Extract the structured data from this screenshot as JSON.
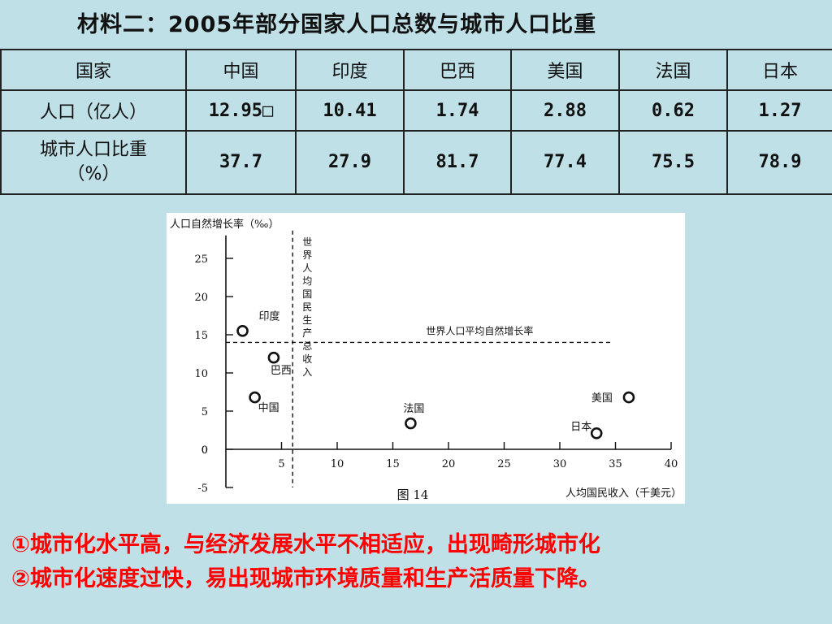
{
  "title": "材料二：2005年部分国家人口总数与城市人口比重",
  "table": {
    "headers": [
      "国家",
      "中国",
      "印度",
      "巴西",
      "美国",
      "法国",
      "日本"
    ],
    "rows": [
      {
        "label": "人口（亿人）",
        "values": [
          "12.95□",
          "10.41",
          "1.74",
          "2.88",
          "0.62",
          "1.27"
        ]
      },
      {
        "label": "城市人口比重（%）",
        "values": [
          "37.7",
          "27.9",
          "81.7",
          "77.4",
          "75.5",
          "78.9"
        ]
      }
    ]
  },
  "chart_data": {
    "type": "scatter",
    "title": "",
    "caption": "图 14",
    "ylabel": "人口自然增长率（‰）",
    "xlabel": "人均国民收入（千美元）",
    "xlim": [
      0,
      40
    ],
    "ylim": [
      -5,
      28
    ],
    "x_ticks": [
      5,
      10,
      15,
      20,
      25,
      30,
      35,
      40
    ],
    "y_ticks": [
      -5,
      0,
      5,
      10,
      15,
      20,
      25
    ],
    "grid": false,
    "points": [
      {
        "label": "印度",
        "x": 1.5,
        "y": 15.5
      },
      {
        "label": "巴西",
        "x": 4.3,
        "y": 12
      },
      {
        "label": "中国",
        "x": 2.6,
        "y": 6.8
      },
      {
        "label": "法国",
        "x": 16.6,
        "y": 3.4
      },
      {
        "label": "美国",
        "x": 36.2,
        "y": 6.8
      },
      {
        "label": "日本",
        "x": 33.3,
        "y": 2.1
      }
    ],
    "reference_lines": [
      {
        "orientation": "vertical",
        "value": 6,
        "label": "世界人均国民生产总收入"
      },
      {
        "orientation": "horizontal",
        "value": 14,
        "label": "世界人口平均自然增长率"
      }
    ]
  },
  "notes": [
    "①城市化水平高，与经济发展水平不相适应，出现畸形城市化",
    "②城市化速度过快，易出现城市环境质量和生产活质量下降。"
  ]
}
